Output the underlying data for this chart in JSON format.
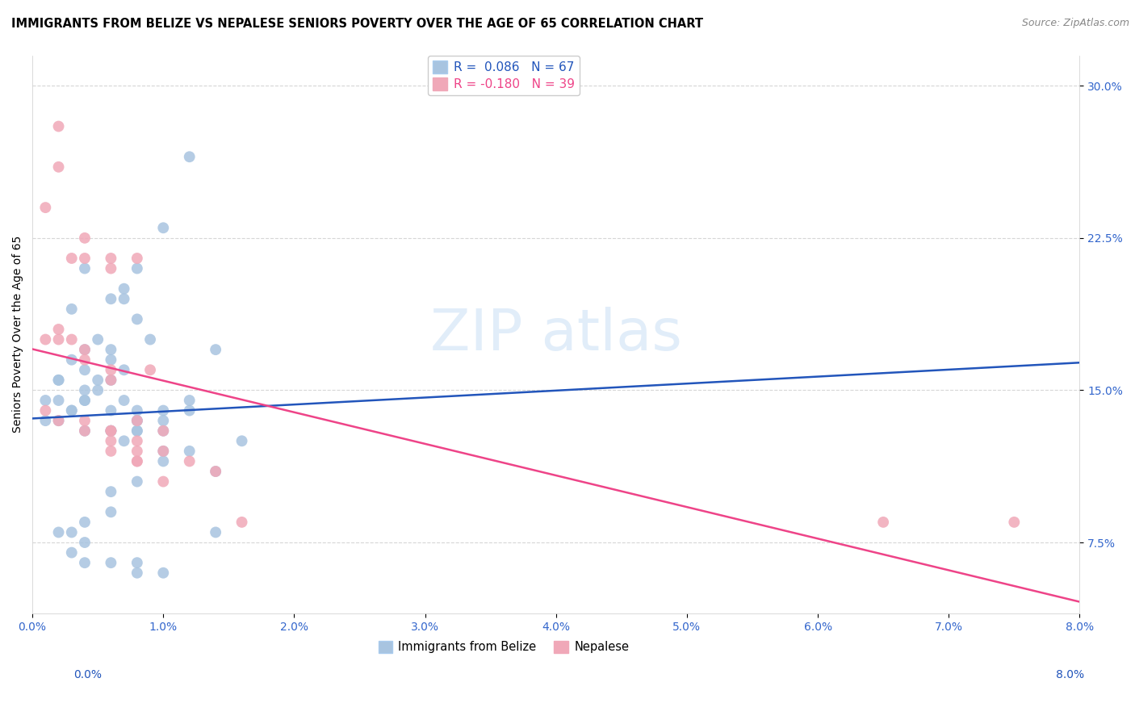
{
  "title": "IMMIGRANTS FROM BELIZE VS NEPALESE SENIORS POVERTY OVER THE AGE OF 65 CORRELATION CHART",
  "source": "Source: ZipAtlas.com",
  "ylabel": "Seniors Poverty Over the Age of 65",
  "xmin": 0.0,
  "xmax": 0.08,
  "ymin": 0.04,
  "ymax": 0.315,
  "yticks_right": [
    0.075,
    0.15,
    0.225,
    0.3
  ],
  "ytick_labels_right": [
    "7.5%",
    "15.0%",
    "22.5%",
    "30.0%"
  ],
  "legend_r1": "R =  0.086",
  "legend_n1": "N = 67",
  "legend_r2": "R = -0.180",
  "legend_n2": "N = 39",
  "blue_color": "#A8C4E0",
  "pink_color": "#F0A8B8",
  "blue_line_color": "#2255BB",
  "pink_line_color": "#EE4488",
  "belize_x": [
    0.001,
    0.003,
    0.004,
    0.005,
    0.006,
    0.007,
    0.007,
    0.008,
    0.009,
    0.01,
    0.002,
    0.003,
    0.004,
    0.004,
    0.005,
    0.006,
    0.006,
    0.007,
    0.008,
    0.012,
    0.001,
    0.002,
    0.002,
    0.003,
    0.004,
    0.004,
    0.005,
    0.006,
    0.007,
    0.008,
    0.002,
    0.003,
    0.004,
    0.006,
    0.008,
    0.01,
    0.012,
    0.014,
    0.006,
    0.008,
    0.004,
    0.006,
    0.008,
    0.01,
    0.012,
    0.007,
    0.008,
    0.01,
    0.012,
    0.016,
    0.006,
    0.008,
    0.01,
    0.014,
    0.01,
    0.014,
    0.008,
    0.01,
    0.006,
    0.004,
    0.003,
    0.004,
    0.002,
    0.003,
    0.004,
    0.006,
    0.008
  ],
  "belize_y": [
    0.145,
    0.19,
    0.21,
    0.175,
    0.195,
    0.2,
    0.195,
    0.185,
    0.175,
    0.23,
    0.155,
    0.165,
    0.17,
    0.16,
    0.155,
    0.17,
    0.165,
    0.16,
    0.21,
    0.265,
    0.135,
    0.145,
    0.155,
    0.14,
    0.15,
    0.145,
    0.15,
    0.155,
    0.145,
    0.14,
    0.135,
    0.14,
    0.145,
    0.14,
    0.135,
    0.14,
    0.145,
    0.17,
    0.13,
    0.135,
    0.13,
    0.13,
    0.13,
    0.13,
    0.14,
    0.125,
    0.13,
    0.135,
    0.12,
    0.125,
    0.1,
    0.105,
    0.12,
    0.08,
    0.115,
    0.11,
    0.065,
    0.06,
    0.09,
    0.085,
    0.08,
    0.075,
    0.08,
    0.07,
    0.065,
    0.065,
    0.06
  ],
  "nepalese_x": [
    0.001,
    0.002,
    0.002,
    0.003,
    0.004,
    0.004,
    0.006,
    0.006,
    0.008,
    0.009,
    0.001,
    0.002,
    0.002,
    0.003,
    0.004,
    0.004,
    0.006,
    0.006,
    0.008,
    0.01,
    0.001,
    0.002,
    0.004,
    0.006,
    0.008,
    0.01,
    0.012,
    0.014,
    0.008,
    0.004,
    0.006,
    0.006,
    0.008,
    0.008,
    0.01,
    0.016,
    0.065,
    0.075,
    0.006
  ],
  "nepalese_y": [
    0.24,
    0.26,
    0.28,
    0.215,
    0.225,
    0.215,
    0.215,
    0.21,
    0.215,
    0.16,
    0.175,
    0.175,
    0.18,
    0.175,
    0.17,
    0.165,
    0.16,
    0.155,
    0.135,
    0.13,
    0.14,
    0.135,
    0.135,
    0.13,
    0.125,
    0.12,
    0.115,
    0.11,
    0.12,
    0.13,
    0.125,
    0.12,
    0.115,
    0.115,
    0.105,
    0.085,
    0.085,
    0.085,
    0.13
  ]
}
